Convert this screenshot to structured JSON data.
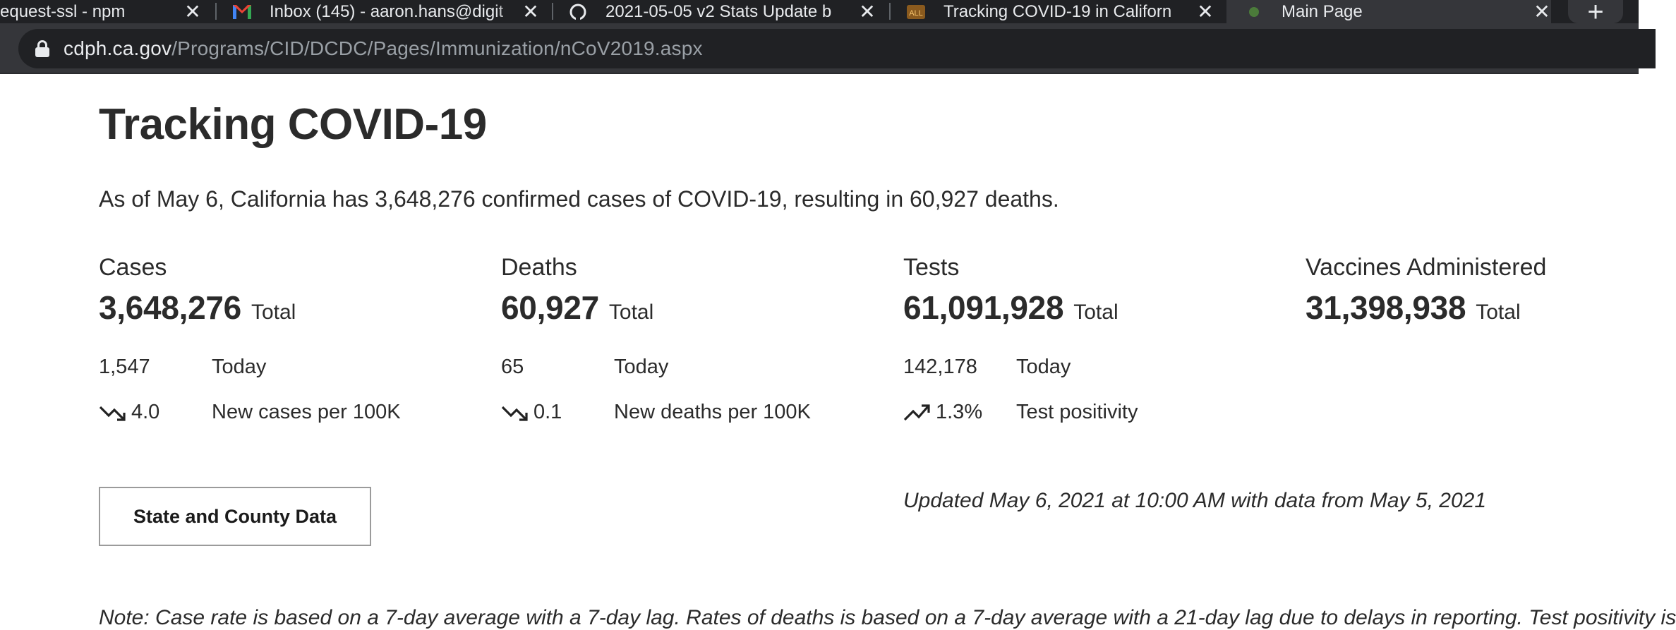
{
  "browser": {
    "tabs": [
      {
        "title": "equest-ssl - npm",
        "icon": "npm-icon"
      },
      {
        "title": "Inbox (145) - aaron.hans@digit",
        "icon": "gmail-icon"
      },
      {
        "title": "2021-05-05 v2 Stats Update b",
        "icon": "github-icon"
      },
      {
        "title": "Tracking COVID-19 in Californ",
        "icon": "ca-gov-icon"
      },
      {
        "title": "Main Page",
        "icon": "page-icon",
        "active": true
      }
    ],
    "new_tab_label": "+",
    "close_glyph": "✕",
    "url_domain": "cdph.ca.gov",
    "url_path": "/Programs/CID/DCDC/Pages/Immunization/nCoV2019.aspx"
  },
  "page": {
    "title": "Tracking COVID-19",
    "summary": "As of May 6, California has 3,648,276 confirmed cases of COVID-19, resulting in 60,927 deaths.",
    "total_label": "Total",
    "today_label": "Today",
    "stats": {
      "cases": {
        "label": "Cases",
        "total": "3,648,276",
        "today": "1,547",
        "rate_value": "4.0",
        "rate_label": "New cases per 100K",
        "trend": "down"
      },
      "deaths": {
        "label": "Deaths",
        "total": "60,927",
        "today": "65",
        "rate_value": "0.1",
        "rate_label": "New deaths per 100K",
        "trend": "down"
      },
      "tests": {
        "label": "Tests",
        "total": "61,091,928",
        "today": "142,178",
        "rate_value": "1.3%",
        "rate_label": "Test positivity",
        "trend": "up"
      },
      "vaccines": {
        "label": "Vaccines Administered",
        "total": "31,398,938"
      }
    },
    "button_label": "State and County Data",
    "updated": "Updated May 6, 2021 at 10:00 AM with data from May 5, 2021",
    "note": "Note: Case rate is based on a 7-day average with a 7-day lag. Rates of deaths is based on a 7-day average with a 21-day lag due to delays in reporting. Test positivity is"
  },
  "colors": {
    "chrome_dark": "#202124",
    "chrome_mid": "#35363a",
    "text": "#2b2b2b"
  }
}
